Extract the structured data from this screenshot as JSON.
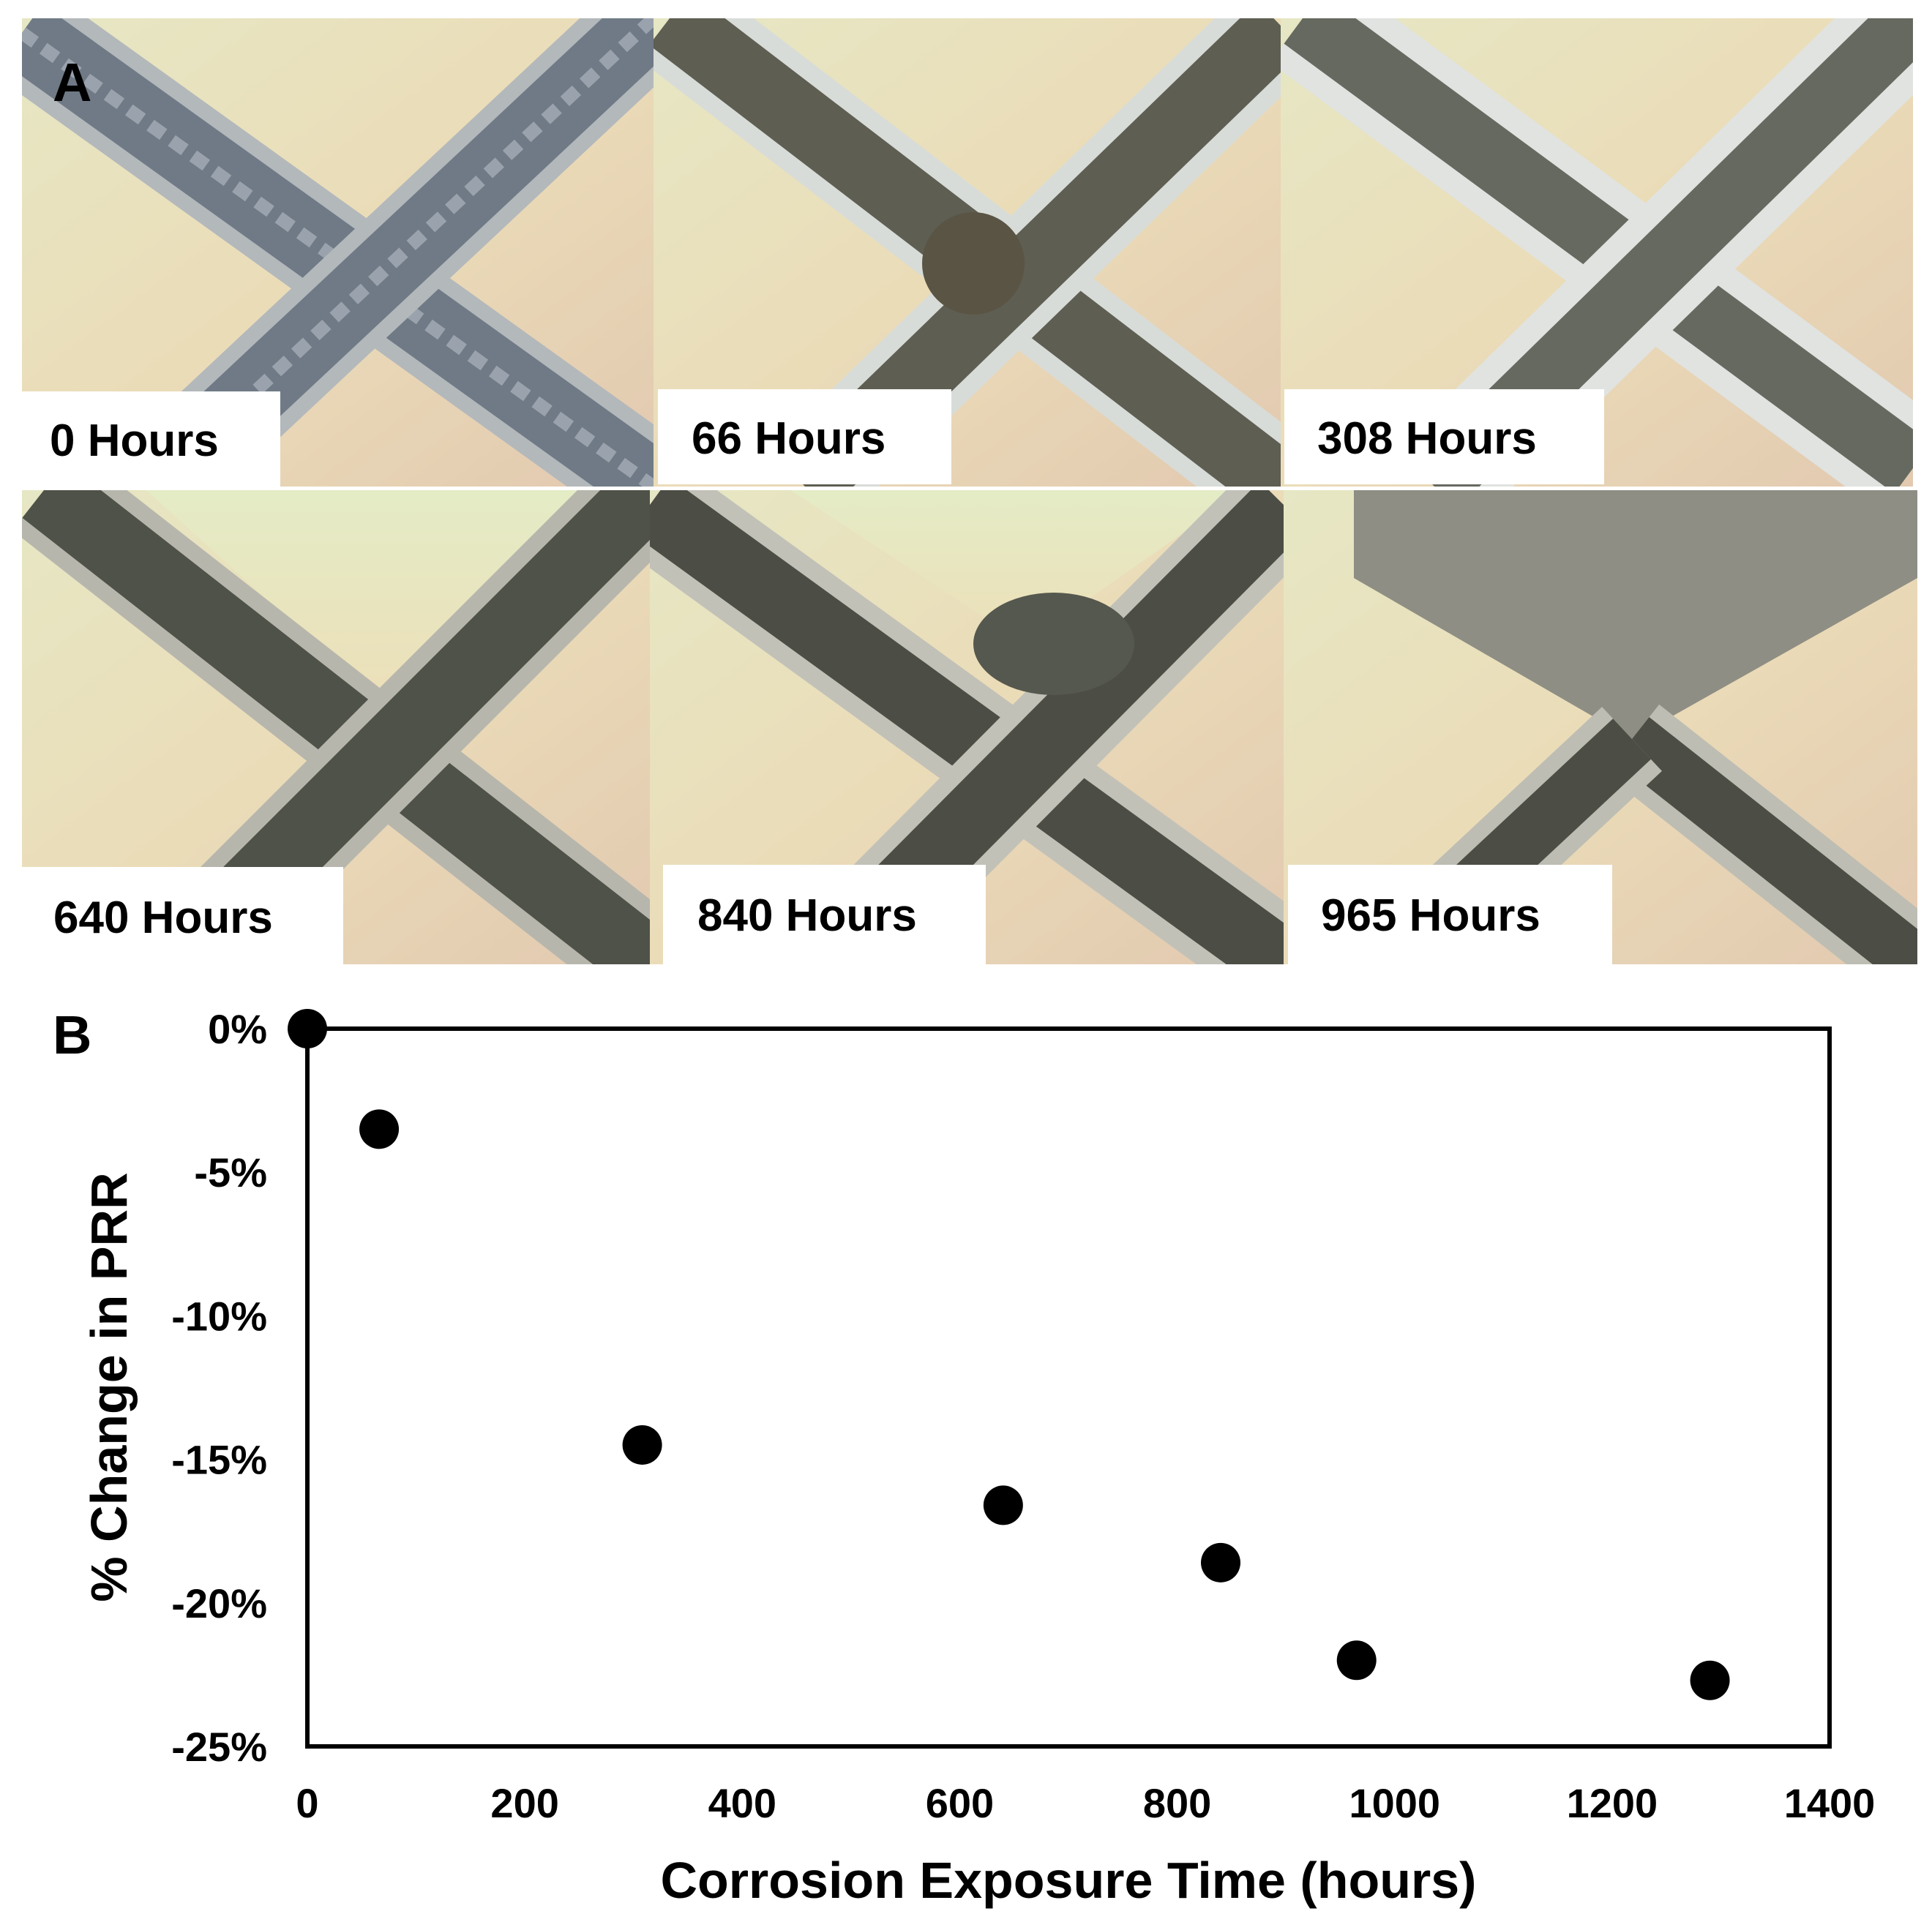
{
  "panel_a": {
    "letter": "A",
    "tiles": [
      {
        "label": "0 Hours"
      },
      {
        "label": "66 Hours"
      },
      {
        "label": "308 Hours"
      },
      {
        "label": "640 Hours"
      },
      {
        "label": "840 Hours"
      },
      {
        "label": "965 Hours"
      }
    ]
  },
  "panel_b": {
    "letter": "B"
  },
  "chart_data": {
    "type": "scatter",
    "title": "",
    "xlabel": "Corrosion Exposure Time (hours)",
    "ylabel": "% Change in PRR",
    "xlim": [
      0,
      1400
    ],
    "ylim": [
      -25,
      0
    ],
    "x_ticks": [
      0,
      200,
      400,
      600,
      800,
      1000,
      1200,
      1400
    ],
    "y_ticks": [
      0,
      -5,
      -10,
      -15,
      -20,
      -25
    ],
    "x_tick_labels": [
      "0",
      "200",
      "400",
      "600",
      "800",
      "1000",
      "1200",
      "1400"
    ],
    "y_tick_labels": [
      "0%",
      "-5%",
      "-10%",
      "-15%",
      "-20%",
      "-25%"
    ],
    "grid": false,
    "marker_color": "#000000",
    "points": [
      {
        "x": 0,
        "y": 0
      },
      {
        "x": 66,
        "y": -3.5
      },
      {
        "x": 308,
        "y": -14.5
      },
      {
        "x": 640,
        "y": -16.6
      },
      {
        "x": 840,
        "y": -18.6
      },
      {
        "x": 965,
        "y": -22.0
      },
      {
        "x": 1290,
        "y": -22.7
      }
    ]
  }
}
